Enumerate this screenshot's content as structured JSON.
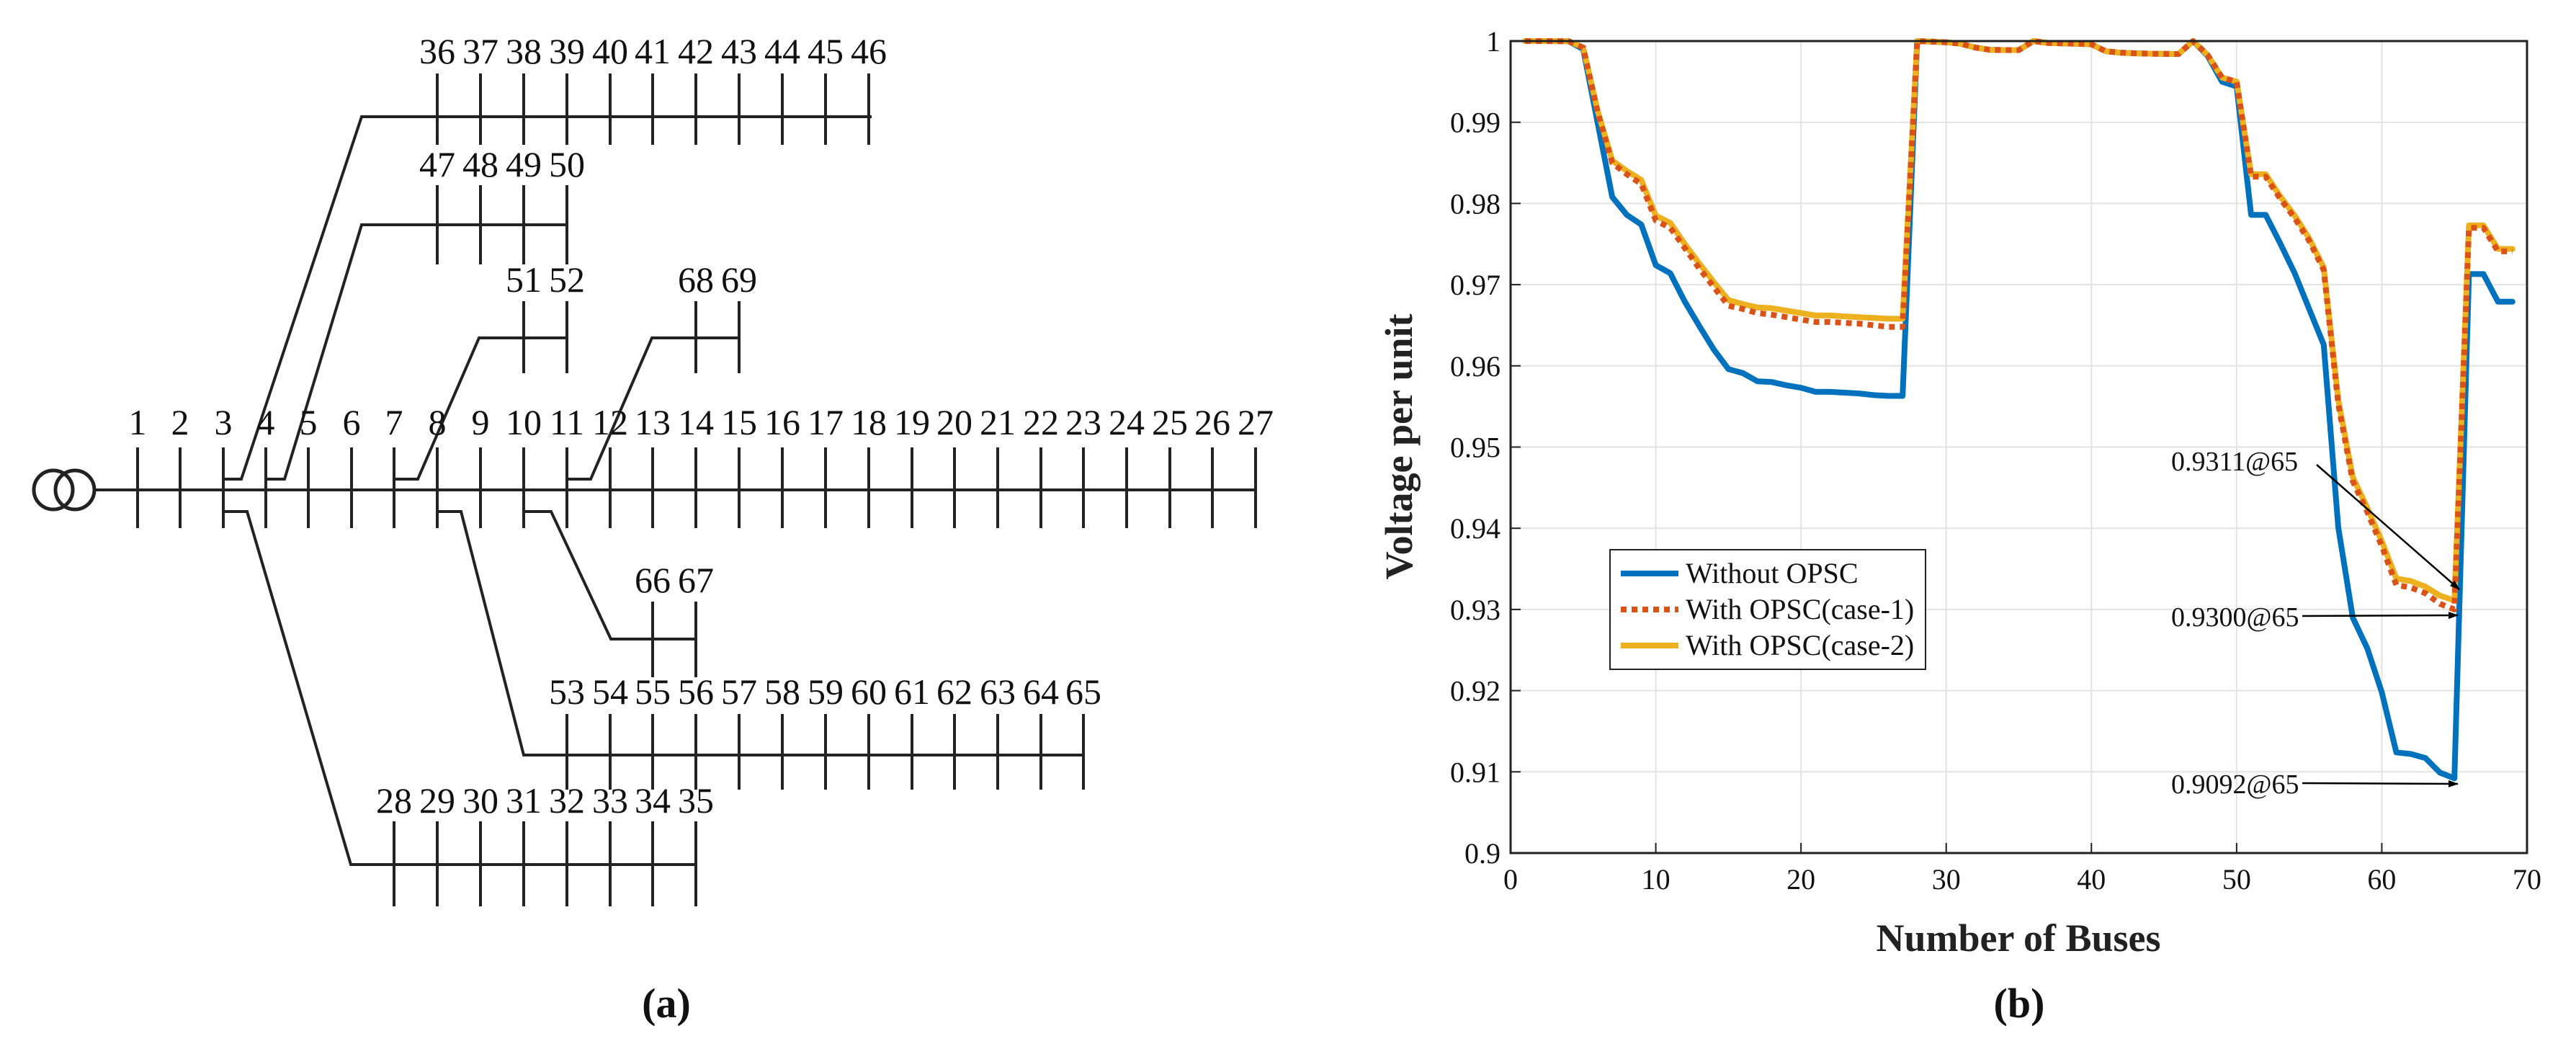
{
  "panels": {
    "a": {
      "label": "(a)"
    },
    "b": {
      "label": "(b)"
    }
  },
  "network": {
    "main_feeder": [
      "1",
      "2",
      "3",
      "4",
      "5",
      "6",
      "7",
      "8",
      "9",
      "10",
      "11",
      "12",
      "13",
      "14",
      "15",
      "16",
      "17",
      "18",
      "19",
      "20",
      "21",
      "22",
      "23",
      "24",
      "25",
      "26",
      "27"
    ],
    "branch_36_46": [
      "36",
      "37",
      "38",
      "39",
      "40",
      "41",
      "42",
      "43",
      "44",
      "45",
      "46"
    ],
    "branch_47_50": [
      "47",
      "48",
      "49",
      "50"
    ],
    "branch_51_52": [
      "51",
      "52"
    ],
    "branch_68_69": [
      "68",
      "69"
    ],
    "branch_66_67": [
      "66",
      "67"
    ],
    "branch_53_65": [
      "53",
      "54",
      "55",
      "56",
      "57",
      "58",
      "59",
      "60",
      "61",
      "62",
      "63",
      "64",
      "65"
    ],
    "branch_28_35": [
      "28",
      "29",
      "30",
      "31",
      "32",
      "33",
      "34",
      "35"
    ]
  },
  "chart_data": {
    "type": "line",
    "xlabel": "Number of Buses",
    "ylabel": "Voltage per unit",
    "xlim": [
      0,
      70
    ],
    "ylim": [
      0.9,
      1.0
    ],
    "xticks": [
      "0",
      "10",
      "20",
      "30",
      "40",
      "50",
      "60",
      "70"
    ],
    "yticks": [
      "0.9",
      "0.91",
      "0.92",
      "0.93",
      "0.94",
      "0.95",
      "0.96",
      "0.97",
      "0.98",
      "0.99",
      "1"
    ],
    "grid": true,
    "legend_position": "lower-left",
    "series": [
      {
        "name": "Without OPSC",
        "color": "#0072BD",
        "style": "solid",
        "x": [
          1,
          2,
          3,
          4,
          5,
          6,
          7,
          8,
          9,
          10,
          11,
          12,
          13,
          14,
          15,
          16,
          17,
          18,
          19,
          20,
          21,
          22,
          23,
          24,
          25,
          26,
          27,
          28,
          29,
          30,
          31,
          32,
          33,
          34,
          35,
          36,
          37,
          38,
          39,
          40,
          41,
          42,
          43,
          44,
          45,
          46,
          47,
          48,
          49,
          50,
          51,
          52,
          53,
          54,
          55,
          56,
          57,
          58,
          59,
          60,
          61,
          62,
          63,
          64,
          65,
          66,
          67,
          68,
          69
        ],
        "y": [
          1.0,
          1.0,
          0.99999,
          0.99998,
          0.999,
          0.9899,
          0.9808,
          0.9786,
          0.9774,
          0.9724,
          0.9714,
          0.9679,
          0.9649,
          0.962,
          0.9596,
          0.9591,
          0.9581,
          0.958,
          0.9576,
          0.9573,
          0.9568,
          0.9568,
          0.9567,
          0.9566,
          0.9564,
          0.9563,
          0.9563,
          0.99999,
          0.99993,
          0.99985,
          0.99967,
          0.9992,
          0.99893,
          0.99889,
          0.99889,
          1.0,
          0.99977,
          0.99972,
          0.99966,
          0.9996,
          0.99874,
          0.99857,
          0.99849,
          0.99845,
          0.99842,
          0.9984,
          1.0,
          0.9982,
          0.995,
          0.9944,
          0.9786,
          0.9786,
          0.9751,
          0.9714,
          0.967,
          0.9626,
          0.9401,
          0.929,
          0.9252,
          0.9198,
          0.9124,
          0.9122,
          0.9117,
          0.9099,
          0.9092,
          0.9713,
          0.9713,
          0.9679,
          0.9679
        ]
      },
      {
        "name": "With OPSC(case-1)",
        "color": "#D95319",
        "style": "dotted",
        "x": [
          1,
          2,
          3,
          4,
          5,
          6,
          7,
          8,
          9,
          10,
          11,
          12,
          13,
          14,
          15,
          16,
          17,
          18,
          19,
          20,
          21,
          22,
          23,
          24,
          25,
          26,
          27,
          28,
          29,
          30,
          31,
          32,
          33,
          34,
          35,
          36,
          37,
          38,
          39,
          40,
          41,
          42,
          43,
          44,
          45,
          46,
          47,
          48,
          49,
          50,
          51,
          52,
          53,
          54,
          55,
          56,
          57,
          58,
          59,
          60,
          61,
          62,
          63,
          64,
          65,
          66,
          67,
          68,
          69
        ],
        "y": [
          1.0,
          1.0,
          0.99999,
          0.99998,
          0.9992,
          0.9912,
          0.985,
          0.9836,
          0.9824,
          0.9779,
          0.977,
          0.9745,
          0.972,
          0.9697,
          0.9674,
          0.967,
          0.9665,
          0.9663,
          0.966,
          0.9657,
          0.9654,
          0.9654,
          0.9653,
          0.9652,
          0.965,
          0.9648,
          0.9648,
          0.99999,
          0.99993,
          0.99985,
          0.99967,
          0.9992,
          0.99893,
          0.99889,
          0.99889,
          1.0,
          0.99977,
          0.99972,
          0.99966,
          0.9996,
          0.99874,
          0.99857,
          0.99849,
          0.99845,
          0.99842,
          0.9984,
          1.0,
          0.9983,
          0.9955,
          0.995,
          0.9833,
          0.9833,
          0.9806,
          0.9782,
          0.9754,
          0.9718,
          0.9553,
          0.9458,
          0.942,
          0.9378,
          0.933,
          0.9327,
          0.932,
          0.9307,
          0.93,
          0.977,
          0.977,
          0.9741,
          0.9741
        ]
      },
      {
        "name": "With OPSC(case-2)",
        "color": "#EDB120",
        "style": "solid",
        "x": [
          1,
          2,
          3,
          4,
          5,
          6,
          7,
          8,
          9,
          10,
          11,
          12,
          13,
          14,
          15,
          16,
          17,
          18,
          19,
          20,
          21,
          22,
          23,
          24,
          25,
          26,
          27,
          28,
          29,
          30,
          31,
          32,
          33,
          34,
          35,
          36,
          37,
          38,
          39,
          40,
          41,
          42,
          43,
          44,
          45,
          46,
          47,
          48,
          49,
          50,
          51,
          52,
          53,
          54,
          55,
          56,
          57,
          58,
          59,
          60,
          61,
          62,
          63,
          64,
          65,
          66,
          67,
          68,
          69
        ],
        "y": [
          1.0,
          1.0,
          0.99999,
          0.99998,
          0.9992,
          0.9914,
          0.9853,
          0.984,
          0.9829,
          0.9785,
          0.9776,
          0.975,
          0.9726,
          0.9703,
          0.9681,
          0.9676,
          0.9672,
          0.9671,
          0.9668,
          0.9665,
          0.9662,
          0.9662,
          0.9661,
          0.966,
          0.9659,
          0.9658,
          0.9658,
          0.99999,
          0.99993,
          0.99985,
          0.99967,
          0.9992,
          0.99893,
          0.99889,
          0.99889,
          1.0,
          0.99977,
          0.99972,
          0.99966,
          0.9996,
          0.99874,
          0.99857,
          0.99849,
          0.99845,
          0.99842,
          0.9984,
          1.0,
          0.9983,
          0.9955,
          0.995,
          0.9836,
          0.9836,
          0.9809,
          0.9785,
          0.9757,
          0.9721,
          0.9558,
          0.9463,
          0.9425,
          0.9384,
          0.9338,
          0.9335,
          0.9328,
          0.9317,
          0.9311,
          0.9773,
          0.9773,
          0.9744,
          0.9744
        ]
      }
    ],
    "annotations": [
      {
        "text": "0.9311@65",
        "x": 65,
        "y": 0.9311
      },
      {
        "text": "0.9300@65",
        "x": 65,
        "y": 0.93
      },
      {
        "text": "0.9092@65",
        "x": 65,
        "y": 0.9092
      }
    ]
  }
}
